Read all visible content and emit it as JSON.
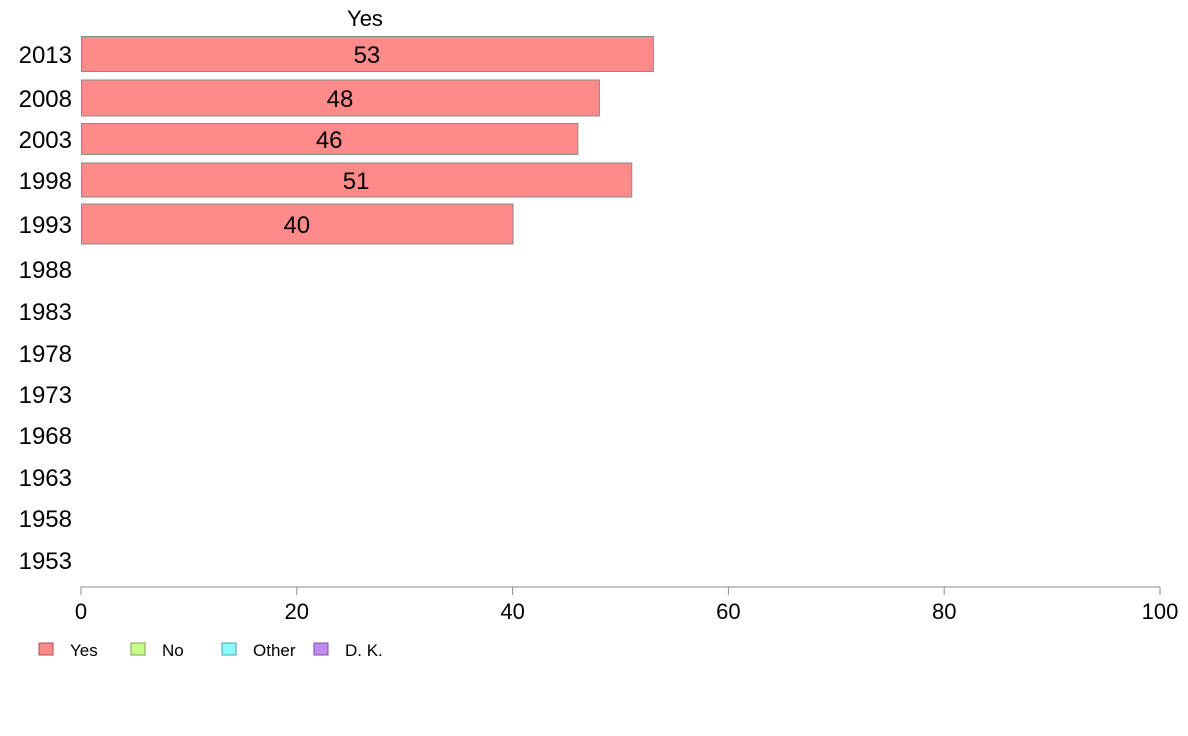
{
  "chart_data": {
    "type": "bar",
    "orientation": "horizontal",
    "categories": [
      "2013",
      "2008",
      "2003",
      "1998",
      "1993",
      "1988",
      "1983",
      "1978",
      "1973",
      "1968",
      "1963",
      "1958",
      "1953"
    ],
    "series": [
      {
        "name": "Yes",
        "color": "#ff8a8a",
        "values": [
          53,
          48,
          46,
          51,
          40,
          null,
          null,
          null,
          null,
          null,
          null,
          null,
          null
        ],
        "labels": [
          "53",
          "48",
          "46",
          "51",
          "40",
          "",
          "",
          "",
          "",
          "",
          "",
          "",
          ""
        ]
      }
    ],
    "xlim": [
      0,
      100
    ],
    "xticks": [
      "0",
      "20",
      "40",
      "60",
      "80",
      "100"
    ],
    "grid": false,
    "legend_placement": "bottom-left",
    "legend": [
      {
        "label": "Yes",
        "color": "#ff8a8a",
        "border": "#a05050"
      },
      {
        "label": "No",
        "color": "#c8ff8a",
        "border": "#7aa050"
      },
      {
        "label": "Other",
        "color": "#8affff",
        "border": "#50a0a0"
      },
      {
        "label": "D. K.",
        "color": "#c08af0",
        "border": "#7a50a0"
      }
    ]
  }
}
